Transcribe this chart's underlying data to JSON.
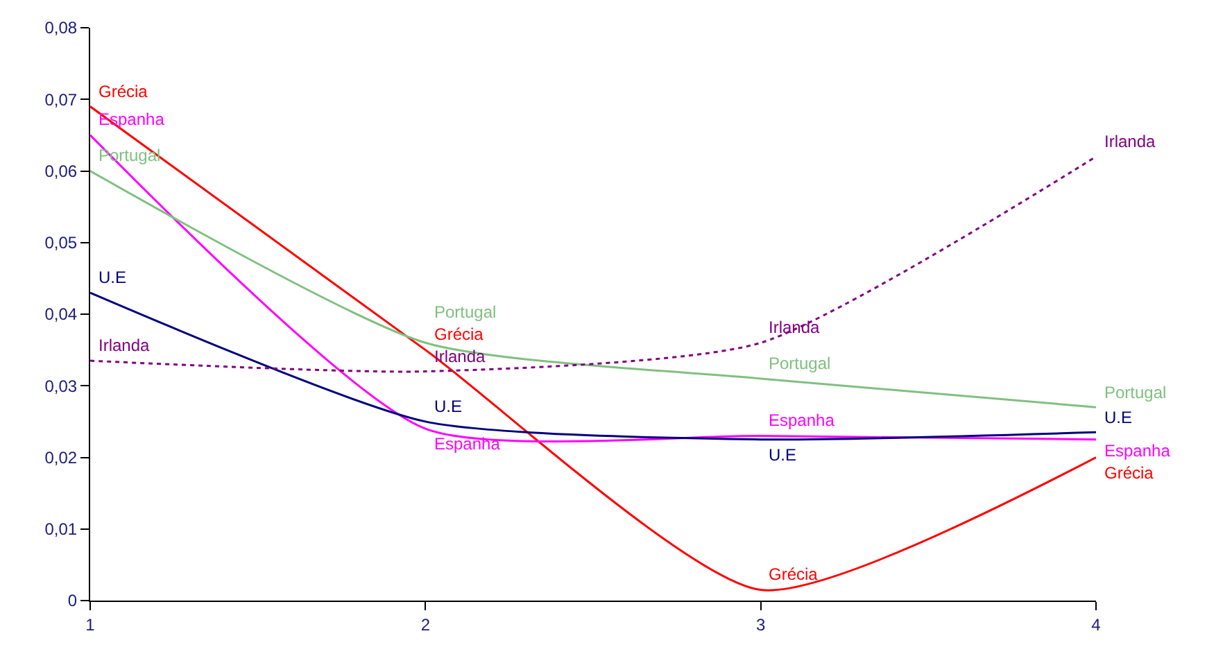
{
  "chart_data": {
    "type": "line",
    "x": [
      1,
      2,
      3,
      4
    ],
    "series": [
      {
        "name": "Grécia",
        "color": "#ff0000",
        "values": [
          0.069,
          0.035,
          0.0015,
          0.02
        ]
      },
      {
        "name": "Espanha",
        "color": "#ff00ff",
        "values": [
          0.065,
          0.024,
          0.023,
          0.0225
        ]
      },
      {
        "name": "Portugal",
        "color": "#80c080",
        "values": [
          0.06,
          0.036,
          0.031,
          0.027
        ]
      },
      {
        "name": "U.E",
        "color": "#000080",
        "values": [
          0.043,
          0.025,
          0.0225,
          0.0235
        ]
      },
      {
        "name": "Irlanda",
        "color": "#800080",
        "line_style": "dotted",
        "values": [
          0.0335,
          0.032,
          0.036,
          0.062
        ]
      }
    ],
    "xlim": [
      1,
      4
    ],
    "xticks": [
      1,
      2,
      3,
      4
    ],
    "ylim": [
      0,
      0.08
    ],
    "yticks": [
      {
        "value": 0,
        "label": "0"
      },
      {
        "value": 0.01,
        "label": "0,01"
      },
      {
        "value": 0.02,
        "label": "0,02"
      },
      {
        "value": 0.03,
        "label": "0,03"
      },
      {
        "value": 0.04,
        "label": "0,04"
      },
      {
        "value": 0.05,
        "label": "0,05"
      },
      {
        "value": 0.06,
        "label": "0,06"
      },
      {
        "value": 0.07,
        "label": "0,07"
      },
      {
        "value": 0.08,
        "label": "0,08"
      }
    ],
    "grid": false,
    "legend": false,
    "marker": "none",
    "line_style": "solid"
  }
}
